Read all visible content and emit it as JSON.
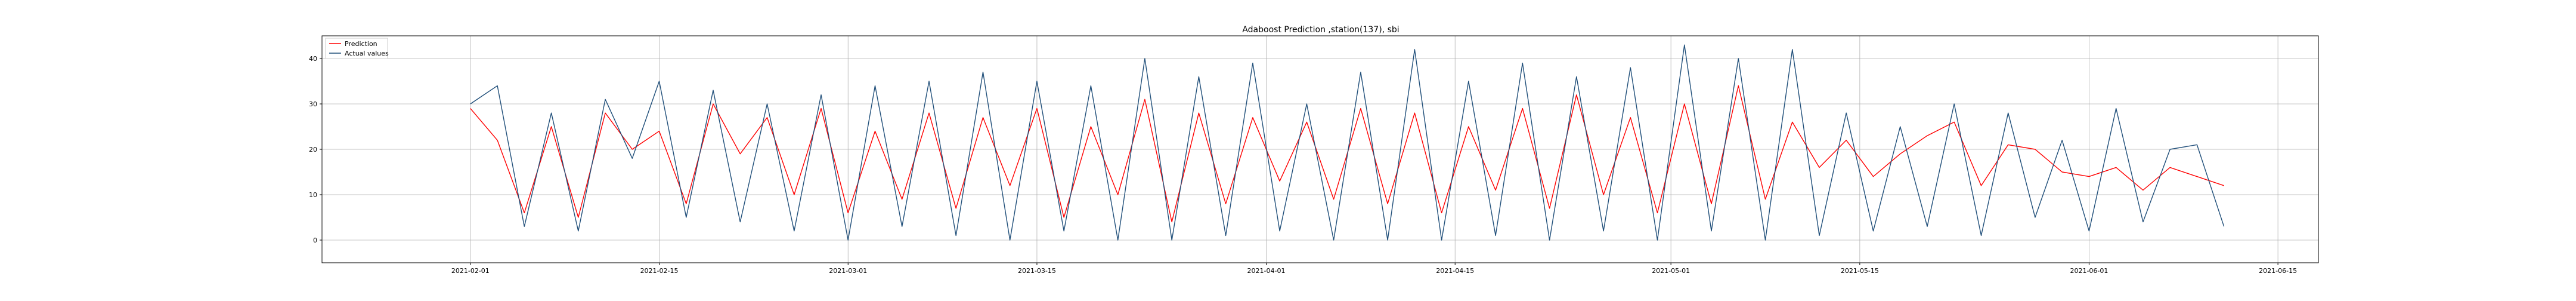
{
  "chart_data": {
    "type": "line",
    "title": "Adaboost Prediction ,station(137), sbi",
    "xlabel": "",
    "ylabel": "",
    "x_range": [
      "2021-01-21",
      "2021-06-18"
    ],
    "x_ticks": [
      "2021-02-01",
      "2021-02-15",
      "2021-03-01",
      "2021-03-15",
      "2021-04-01",
      "2021-04-15",
      "2021-05-01",
      "2021-05-15",
      "2021-06-01",
      "2021-06-15"
    ],
    "ylim": [
      -5,
      45
    ],
    "y_ticks": [
      0,
      10,
      20,
      30,
      40
    ],
    "grid": true,
    "legend_position": "top-left",
    "series": [
      {
        "name": "Prediction",
        "color": "#ff0000",
        "x": [
          "2021-02-01",
          "2021-02-03",
          "2021-02-05",
          "2021-02-07",
          "2021-02-09",
          "2021-02-11",
          "2021-02-13",
          "2021-02-15",
          "2021-02-17",
          "2021-02-19",
          "2021-02-21",
          "2021-02-23",
          "2021-02-25",
          "2021-02-27",
          "2021-03-01",
          "2021-03-03",
          "2021-03-05",
          "2021-03-07",
          "2021-03-09",
          "2021-03-11",
          "2021-03-13",
          "2021-03-15",
          "2021-03-17",
          "2021-03-19",
          "2021-03-21",
          "2021-03-23",
          "2021-03-25",
          "2021-03-27",
          "2021-03-29",
          "2021-03-31",
          "2021-04-02",
          "2021-04-04",
          "2021-04-06",
          "2021-04-08",
          "2021-04-10",
          "2021-04-12",
          "2021-04-14",
          "2021-04-16",
          "2021-04-18",
          "2021-04-20",
          "2021-04-22",
          "2021-04-24",
          "2021-04-26",
          "2021-04-28",
          "2021-04-30",
          "2021-05-02",
          "2021-05-04",
          "2021-05-06",
          "2021-05-08",
          "2021-05-10",
          "2021-05-12",
          "2021-05-14",
          "2021-05-16",
          "2021-05-18",
          "2021-05-20",
          "2021-05-22",
          "2021-05-24",
          "2021-05-26",
          "2021-05-28",
          "2021-05-30",
          "2021-06-01",
          "2021-06-03",
          "2021-06-05",
          "2021-06-07",
          "2021-06-09",
          "2021-06-11"
        ],
        "y": [
          29,
          22,
          6,
          25,
          5,
          28,
          20,
          24,
          8,
          30,
          19,
          27,
          10,
          29,
          6,
          24,
          9,
          28,
          7,
          27,
          12,
          29,
          5,
          25,
          10,
          31,
          4,
          28,
          8,
          27,
          13,
          26,
          9,
          29,
          8,
          28,
          6,
          25,
          11,
          29,
          7,
          32,
          10,
          27,
          6,
          30,
          8,
          34,
          9,
          26,
          16,
          22,
          14,
          19,
          23,
          26,
          12,
          21,
          20,
          15,
          14,
          16,
          11,
          16,
          14,
          12
        ]
      },
      {
        "name": "Actual values",
        "color": "#1f4e79",
        "x": [
          "2021-02-01",
          "2021-02-03",
          "2021-02-05",
          "2021-02-07",
          "2021-02-09",
          "2021-02-11",
          "2021-02-13",
          "2021-02-15",
          "2021-02-17",
          "2021-02-19",
          "2021-02-21",
          "2021-02-23",
          "2021-02-25",
          "2021-02-27",
          "2021-03-01",
          "2021-03-03",
          "2021-03-05",
          "2021-03-07",
          "2021-03-09",
          "2021-03-11",
          "2021-03-13",
          "2021-03-15",
          "2021-03-17",
          "2021-03-19",
          "2021-03-21",
          "2021-03-23",
          "2021-03-25",
          "2021-03-27",
          "2021-03-29",
          "2021-03-31",
          "2021-04-02",
          "2021-04-04",
          "2021-04-06",
          "2021-04-08",
          "2021-04-10",
          "2021-04-12",
          "2021-04-14",
          "2021-04-16",
          "2021-04-18",
          "2021-04-20",
          "2021-04-22",
          "2021-04-24",
          "2021-04-26",
          "2021-04-28",
          "2021-04-30",
          "2021-05-02",
          "2021-05-04",
          "2021-05-06",
          "2021-05-08",
          "2021-05-10",
          "2021-05-12",
          "2021-05-14",
          "2021-05-16",
          "2021-05-18",
          "2021-05-20",
          "2021-05-22",
          "2021-05-24",
          "2021-05-26",
          "2021-05-28",
          "2021-05-30",
          "2021-06-01",
          "2021-06-03",
          "2021-06-05",
          "2021-06-07",
          "2021-06-09",
          "2021-06-11"
        ],
        "y": [
          30,
          34,
          3,
          28,
          2,
          31,
          18,
          35,
          5,
          33,
          4,
          30,
          2,
          32,
          0,
          34,
          3,
          35,
          1,
          37,
          0,
          35,
          2,
          34,
          0,
          40,
          0,
          36,
          1,
          39,
          2,
          30,
          0,
          37,
          0,
          42,
          0,
          35,
          1,
          39,
          0,
          36,
          2,
          38,
          0,
          43,
          2,
          40,
          0,
          42,
          1,
          28,
          2,
          25,
          3,
          30,
          1,
          28,
          5,
          22,
          2,
          29,
          4,
          20,
          21,
          3
        ]
      }
    ]
  }
}
